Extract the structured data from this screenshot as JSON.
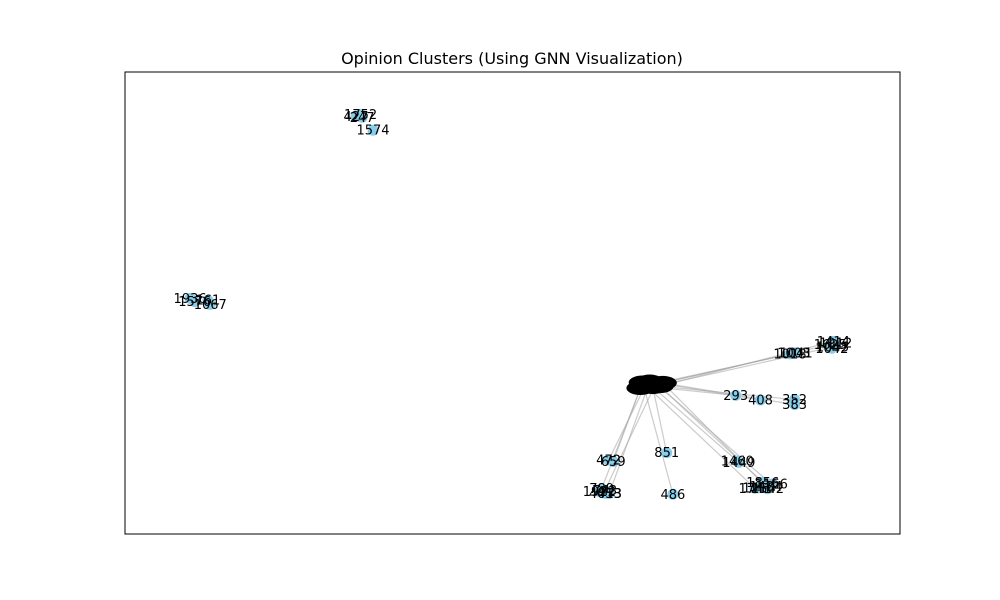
{
  "chart_data": {
    "type": "scatter",
    "title": "Opinion Clusters (Using GNN Visualization)",
    "xlabel": "",
    "ylabel": "",
    "xlim": [
      0,
      1
    ],
    "ylim": [
      0,
      1
    ],
    "grid": false,
    "axes_ticks": false,
    "node_color": "#87ceeb",
    "edge_color": "#a9a9a9",
    "label_color": "#000000",
    "nodes": [
      {
        "id": "h0",
        "label": "",
        "x": 0.668,
        "y": 0.328,
        "hub": true
      },
      {
        "id": "h1",
        "label": "",
        "x": 0.677,
        "y": 0.33,
        "hub": true
      },
      {
        "id": "h2",
        "label": "",
        "x": 0.685,
        "y": 0.326,
        "hub": true
      },
      {
        "id": "h3",
        "label": "",
        "x": 0.671,
        "y": 0.32,
        "hub": true
      },
      {
        "id": "h4",
        "label": "",
        "x": 0.681,
        "y": 0.318,
        "hub": true
      },
      {
        "id": "h5",
        "label": "",
        "x": 0.69,
        "y": 0.32,
        "hub": true
      },
      {
        "id": "h6",
        "label": "",
        "x": 0.665,
        "y": 0.316,
        "hub": true
      },
      {
        "id": "h7",
        "label": "",
        "x": 0.694,
        "y": 0.327,
        "hub": true
      },
      {
        "id": "n1752",
        "label": "1752",
        "x": 0.304,
        "y": 0.908
      },
      {
        "id": "n427",
        "label": "427",
        "x": 0.298,
        "y": 0.904
      },
      {
        "id": "n247",
        "label": "247",
        "x": 0.306,
        "y": 0.902
      },
      {
        "id": "n1574",
        "label": "1574",
        "x": 0.32,
        "y": 0.874
      },
      {
        "id": "n1936",
        "label": "1936",
        "x": 0.084,
        "y": 0.51
      },
      {
        "id": "n1576",
        "label": "1576",
        "x": 0.09,
        "y": 0.503
      },
      {
        "id": "n161",
        "label": "161",
        "x": 0.107,
        "y": 0.506
      },
      {
        "id": "n1067",
        "label": "1067",
        "x": 0.11,
        "y": 0.497
      },
      {
        "id": "n1414",
        "label": "1414",
        "x": 0.914,
        "y": 0.417
      },
      {
        "id": "n1912",
        "label": "1912",
        "x": 0.917,
        "y": 0.413
      },
      {
        "id": "n1625",
        "label": "1625",
        "x": 0.91,
        "y": 0.41
      },
      {
        "id": "n1045",
        "label": "1045",
        "x": 0.913,
        "y": 0.405
      },
      {
        "id": "n1042",
        "label": "1042",
        "x": 0.912,
        "y": 0.402
      },
      {
        "id": "n1041",
        "label": "1041",
        "x": 0.866,
        "y": 0.392
      },
      {
        "id": "n1018",
        "label": "1018",
        "x": 0.858,
        "y": 0.39
      },
      {
        "id": "n1003",
        "label": "1003",
        "x": 0.863,
        "y": 0.392
      },
      {
        "id": "n293",
        "label": "293",
        "x": 0.788,
        "y": 0.3
      },
      {
        "id": "n408",
        "label": "408",
        "x": 0.82,
        "y": 0.29
      },
      {
        "id": "n352",
        "label": "352",
        "x": 0.864,
        "y": 0.291
      },
      {
        "id": "n383",
        "label": "383",
        "x": 0.864,
        "y": 0.28
      },
      {
        "id": "n851",
        "label": "851",
        "x": 0.699,
        "y": 0.176
      },
      {
        "id": "n486",
        "label": "486",
        "x": 0.707,
        "y": 0.086
      },
      {
        "id": "n472",
        "label": "472",
        "x": 0.624,
        "y": 0.16
      },
      {
        "id": "n659",
        "label": "659",
        "x": 0.63,
        "y": 0.157
      },
      {
        "id": "n789",
        "label": "789",
        "x": 0.615,
        "y": 0.098
      },
      {
        "id": "n743",
        "label": "743",
        "x": 0.619,
        "y": 0.094
      },
      {
        "id": "n1922",
        "label": "1922",
        "x": 0.612,
        "y": 0.092
      },
      {
        "id": "n4013",
        "label": "4013",
        "x": 0.62,
        "y": 0.088
      },
      {
        "id": "n453",
        "label": "453",
        "x": 0.625,
        "y": 0.088
      },
      {
        "id": "n1460",
        "label": "1460",
        "x": 0.79,
        "y": 0.158
      },
      {
        "id": "n1449",
        "label": "1449",
        "x": 0.792,
        "y": 0.155
      },
      {
        "id": "n1856",
        "label": "1856",
        "x": 0.823,
        "y": 0.112
      },
      {
        "id": "n1166",
        "label": "1166",
        "x": 0.834,
        "y": 0.108
      },
      {
        "id": "n1434",
        "label": "1434",
        "x": 0.827,
        "y": 0.103
      },
      {
        "id": "n1210",
        "label": "1210",
        "x": 0.818,
        "y": 0.1
      },
      {
        "id": "n1741",
        "label": "1741",
        "x": 0.813,
        "y": 0.099
      },
      {
        "id": "n1542",
        "label": "1542",
        "x": 0.829,
        "y": 0.098
      }
    ],
    "edges": [
      [
        "h5",
        "n1414"
      ],
      [
        "h6",
        "n1625"
      ],
      [
        "h4",
        "n1045"
      ],
      [
        "h2",
        "n1041"
      ],
      [
        "h7",
        "n1018"
      ],
      [
        "h3",
        "n293"
      ],
      [
        "h1",
        "n408"
      ],
      [
        "h5",
        "n352"
      ],
      [
        "h7",
        "n383"
      ],
      [
        "h4",
        "n851"
      ],
      [
        "h0",
        "n486"
      ],
      [
        "h3",
        "n472"
      ],
      [
        "h6",
        "n659"
      ],
      [
        "h0",
        "n789"
      ],
      [
        "h2",
        "n743"
      ],
      [
        "h1",
        "n453"
      ],
      [
        "h4",
        "n1460"
      ],
      [
        "h5",
        "n1856"
      ],
      [
        "h2",
        "n1166"
      ],
      [
        "h7",
        "n1434"
      ],
      [
        "h0",
        "n1741"
      ]
    ]
  }
}
